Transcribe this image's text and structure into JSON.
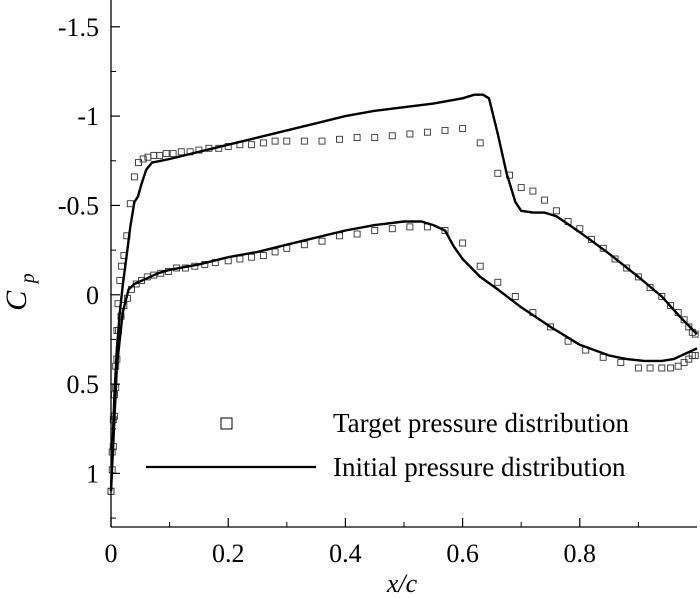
{
  "chart_data": {
    "type": "line",
    "xlabel": "x/c",
    "ylabel": {
      "main": "C",
      "sub": "p"
    },
    "xlim": [
      0,
      1
    ],
    "ylim": [
      -1.65,
      1.3
    ],
    "y_inverted": true,
    "grid": false,
    "legend_placement": "bottom-right",
    "x_ticks": [
      0,
      0.2,
      0.4,
      0.6,
      0.8
    ],
    "x_tick_labels": [
      "0",
      "0.2",
      "0.4",
      "0.6",
      "0.8"
    ],
    "y_ticks": [
      -1.5,
      -1,
      -0.5,
      0,
      0.5,
      1
    ],
    "y_tick_labels": [
      "-1.5",
      "-1",
      "-0.5",
      "0",
      "0.5",
      "1"
    ],
    "series": [
      {
        "name": "Target pressure distribution",
        "style": "square-markers",
        "upper": {
          "x": [
            0.0,
            0.002,
            0.004,
            0.006,
            0.008,
            0.01,
            0.012,
            0.015,
            0.018,
            0.022,
            0.027,
            0.033,
            0.04,
            0.047,
            0.055,
            0.063,
            0.073,
            0.083,
            0.094,
            0.106,
            0.12,
            0.135,
            0.15,
            0.167,
            0.184,
            0.2,
            0.22,
            0.24,
            0.26,
            0.28,
            0.3,
            0.33,
            0.36,
            0.39,
            0.42,
            0.45,
            0.48,
            0.51,
            0.54,
            0.57,
            0.6,
            0.63,
            0.66,
            0.68,
            0.7,
            0.72,
            0.74,
            0.76,
            0.78,
            0.8,
            0.82,
            0.84,
            0.86,
            0.88,
            0.9,
            0.92,
            0.94,
            0.955,
            0.968,
            0.978,
            0.986,
            0.992,
            0.997
          ],
          "y": [
            1.1,
            0.88,
            0.7,
            0.56,
            0.4,
            0.2,
            0.05,
            -0.08,
            -0.16,
            -0.22,
            -0.33,
            -0.51,
            -0.66,
            -0.74,
            -0.76,
            -0.77,
            -0.78,
            -0.78,
            -0.79,
            -0.79,
            -0.8,
            -0.8,
            -0.81,
            -0.82,
            -0.82,
            -0.83,
            -0.84,
            -0.84,
            -0.85,
            -0.86,
            -0.86,
            -0.86,
            -0.86,
            -0.87,
            -0.88,
            -0.88,
            -0.89,
            -0.9,
            -0.91,
            -0.92,
            -0.93,
            -0.85,
            -0.68,
            -0.67,
            -0.6,
            -0.58,
            -0.53,
            -0.47,
            -0.41,
            -0.37,
            -0.31,
            -0.26,
            -0.2,
            -0.15,
            -0.1,
            -0.04,
            0.01,
            0.06,
            0.1,
            0.14,
            0.18,
            0.21,
            0.22
          ]
        },
        "lower": {
          "x": [
            0.0,
            0.002,
            0.004,
            0.006,
            0.008,
            0.01,
            0.013,
            0.017,
            0.022,
            0.028,
            0.035,
            0.043,
            0.052,
            0.062,
            0.073,
            0.085,
            0.098,
            0.112,
            0.127,
            0.143,
            0.16,
            0.178,
            0.2,
            0.22,
            0.24,
            0.26,
            0.28,
            0.3,
            0.33,
            0.36,
            0.39,
            0.42,
            0.45,
            0.48,
            0.51,
            0.54,
            0.57,
            0.6,
            0.63,
            0.66,
            0.69,
            0.72,
            0.75,
            0.78,
            0.81,
            0.84,
            0.87,
            0.9,
            0.92,
            0.94,
            0.955,
            0.968,
            0.978,
            0.986,
            0.992,
            0.997
          ],
          "y": [
            1.1,
            0.98,
            0.85,
            0.68,
            0.52,
            0.36,
            0.2,
            0.12,
            0.06,
            0.02,
            -0.03,
            -0.06,
            -0.08,
            -0.1,
            -0.11,
            -0.12,
            -0.13,
            -0.15,
            -0.15,
            -0.16,
            -0.17,
            -0.18,
            -0.19,
            -0.2,
            -0.21,
            -0.22,
            -0.24,
            -0.26,
            -0.28,
            -0.3,
            -0.33,
            -0.34,
            -0.36,
            -0.37,
            -0.38,
            -0.38,
            -0.36,
            -0.29,
            -0.16,
            -0.07,
            0.01,
            0.1,
            0.18,
            0.26,
            0.31,
            0.35,
            0.38,
            0.41,
            0.41,
            0.41,
            0.41,
            0.4,
            0.38,
            0.36,
            0.34,
            0.34
          ]
        }
      },
      {
        "name": "Initial pressure distribution",
        "style": "solid-line",
        "upper": {
          "x": [
            0.0,
            0.003,
            0.006,
            0.01,
            0.015,
            0.02,
            0.026,
            0.033,
            0.04,
            0.046,
            0.052,
            0.06,
            0.07,
            0.085,
            0.1,
            0.15,
            0.2,
            0.25,
            0.3,
            0.35,
            0.4,
            0.45,
            0.5,
            0.55,
            0.6,
            0.62,
            0.635,
            0.645,
            0.66,
            0.675,
            0.69,
            0.7,
            0.72,
            0.74,
            0.76,
            0.8,
            0.85,
            0.9,
            0.94,
            0.97,
            1.0
          ],
          "y": [
            1.1,
            0.8,
            0.55,
            0.3,
            0.1,
            -0.05,
            -0.2,
            -0.38,
            -0.52,
            -0.55,
            -0.62,
            -0.7,
            -0.74,
            -0.75,
            -0.76,
            -0.8,
            -0.84,
            -0.88,
            -0.92,
            -0.96,
            -1.0,
            -1.03,
            -1.05,
            -1.07,
            -1.1,
            -1.12,
            -1.12,
            -1.1,
            -0.9,
            -0.68,
            -0.52,
            -0.47,
            -0.46,
            -0.46,
            -0.44,
            -0.35,
            -0.23,
            -0.1,
            0.01,
            0.12,
            0.22
          ]
        },
        "lower": {
          "x": [
            0.0,
            0.01,
            0.02,
            0.03,
            0.04,
            0.06,
            0.08,
            0.1,
            0.15,
            0.2,
            0.25,
            0.3,
            0.35,
            0.4,
            0.45,
            0.5,
            0.53,
            0.55,
            0.57,
            0.585,
            0.6,
            0.63,
            0.66,
            0.7,
            0.75,
            0.8,
            0.85,
            0.88,
            0.91,
            0.94,
            0.96,
            0.98,
            1.0
          ],
          "y": [
            1.1,
            0.4,
            0.1,
            -0.03,
            -0.06,
            -0.09,
            -0.12,
            -0.14,
            -0.17,
            -0.21,
            -0.24,
            -0.28,
            -0.32,
            -0.36,
            -0.39,
            -0.41,
            -0.41,
            -0.39,
            -0.36,
            -0.27,
            -0.2,
            -0.1,
            -0.03,
            0.07,
            0.18,
            0.28,
            0.34,
            0.36,
            0.37,
            0.37,
            0.36,
            0.33,
            0.3
          ]
        }
      }
    ]
  }
}
